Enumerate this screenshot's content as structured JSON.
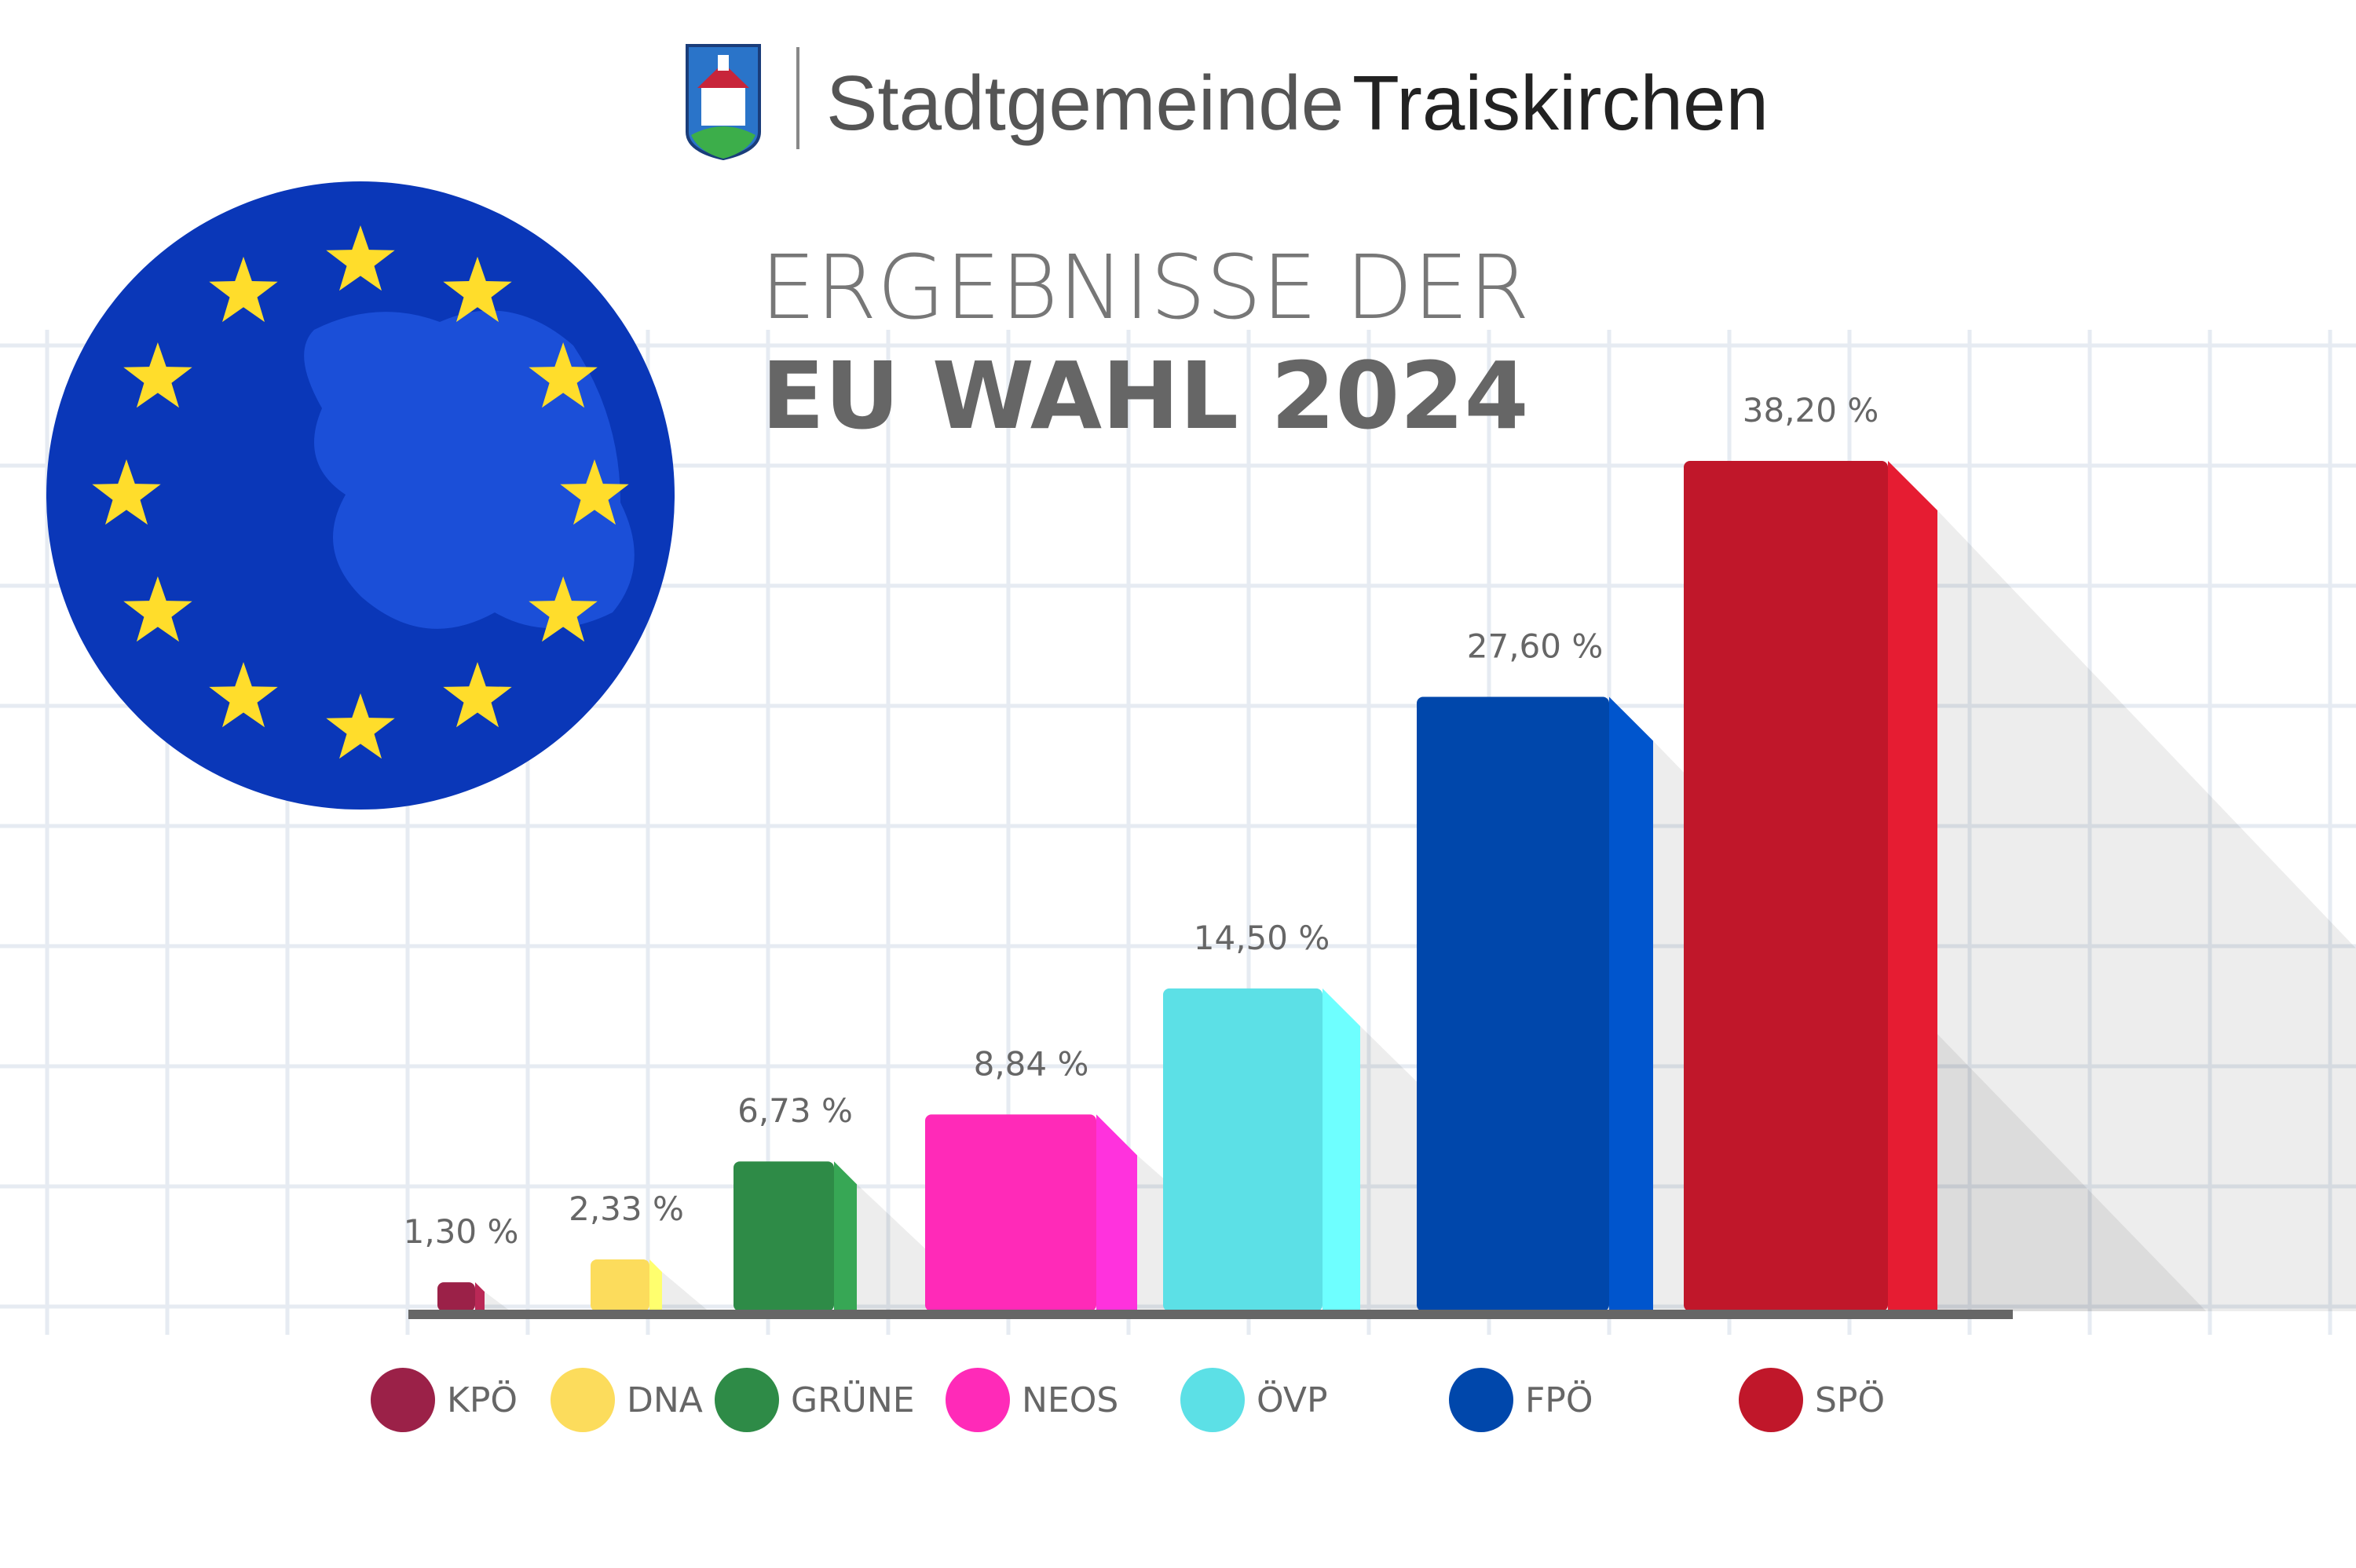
{
  "header": {
    "name_light": "Stadtgemeinde",
    "name_bold": "Traiskirchen"
  },
  "chart_data": {
    "type": "bar",
    "title": "ERGEBNISSE DER",
    "subtitle": "EU WAHL 2024",
    "categories": [
      "KPÖ",
      "DNA",
      "GRÜNE",
      "NEOS",
      "ÖVP",
      "FPÖ",
      "SPÖ"
    ],
    "values": [
      1.3,
      2.33,
      6.73,
      8.84,
      14.5,
      27.6,
      38.2
    ],
    "value_labels": [
      "1,30 %",
      "2,33 %",
      "6,73 %",
      "8,84 %",
      "14,50 %",
      "27,60 %",
      "38,20 %"
    ],
    "colors": [
      "#9b2148",
      "#fcdc5c",
      "#2e8b47",
      "#ff2ab8",
      "#5ce0e6",
      "#0047ab",
      "#c0172a"
    ]
  }
}
